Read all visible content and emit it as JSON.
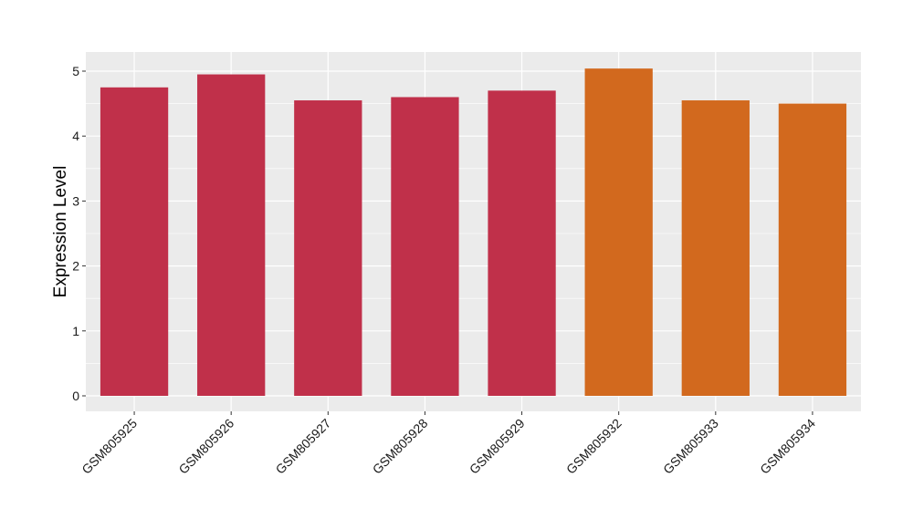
{
  "chart_data": {
    "type": "bar",
    "title": "",
    "xlabel": "",
    "ylabel": "Expression Level",
    "categories": [
      "GSM805925",
      "GSM805926",
      "GSM805927",
      "GSM805928",
      "GSM805929",
      "GSM805932",
      "GSM805933",
      "GSM805934"
    ],
    "values": [
      4.75,
      4.95,
      4.55,
      4.6,
      4.7,
      5.04,
      4.55,
      4.5
    ],
    "bar_colors": [
      "#c0304a",
      "#c0304a",
      "#c0304a",
      "#c0304a",
      "#c0304a",
      "#d2691e",
      "#d2691e",
      "#d2691e"
    ],
    "yticks": [
      0,
      1,
      2,
      3,
      4,
      5
    ],
    "ylim": [
      -0.25,
      5.25
    ],
    "grid": true,
    "panel_background": "#ebebeb",
    "grid_color": "#ffffff"
  }
}
